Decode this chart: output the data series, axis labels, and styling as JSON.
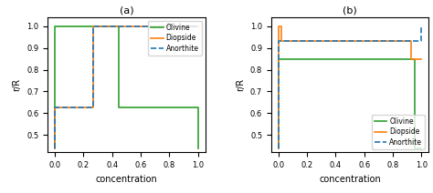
{
  "panel_a": {
    "olivine": {
      "x": [
        0.0,
        0.0,
        0.45,
        0.45,
        1.0,
        1.0
      ],
      "y": [
        0.44,
        1.0,
        1.0,
        0.625,
        0.625,
        0.44
      ]
    },
    "diopside": {
      "x": [
        0.0,
        0.0,
        0.27,
        0.27,
        1.0
      ],
      "y": [
        0.44,
        0.625,
        0.625,
        1.0,
        1.0
      ]
    },
    "anorthite": {
      "x": [
        0.0,
        0.0,
        0.27,
        0.27,
        1.0
      ],
      "y": [
        0.44,
        0.625,
        0.625,
        1.0,
        1.0
      ]
    },
    "xlabel": "concentration",
    "ylabel": "r/R",
    "title": "(a)",
    "xlim": [
      -0.05,
      1.05
    ],
    "ylim": [
      0.42,
      1.04
    ],
    "yticks": [
      0.5,
      0.6,
      0.7,
      0.8,
      0.9,
      1.0
    ],
    "xticks": [
      0.0,
      0.2,
      0.4,
      0.6,
      0.8,
      1.0
    ]
  },
  "panel_b": {
    "olivine": {
      "x": [
        0.0,
        0.0,
        0.05,
        0.05,
        0.95,
        0.95,
        1.0
      ],
      "y": [
        0.44,
        0.85,
        0.85,
        0.85,
        0.85,
        0.44,
        0.44
      ]
    },
    "diopside": {
      "x": [
        0.0,
        0.0,
        0.02,
        0.02,
        0.93,
        0.93,
        1.0
      ],
      "y": [
        0.44,
        1.0,
        1.0,
        0.93,
        0.93,
        0.85,
        0.85
      ]
    },
    "anorthite": {
      "x": [
        0.0,
        0.0,
        0.93,
        0.93,
        1.0,
        1.0
      ],
      "y": [
        0.44,
        0.93,
        0.93,
        0.93,
        0.93,
        1.0
      ]
    },
    "xlabel": "concentration",
    "ylabel": "r/R",
    "title": "(b)",
    "xlim": [
      -0.05,
      1.05
    ],
    "ylim": [
      0.42,
      1.04
    ],
    "yticks": [
      0.5,
      0.6,
      0.7,
      0.8,
      0.9,
      1.0
    ],
    "xticks": [
      0.0,
      0.2,
      0.4,
      0.6,
      0.8,
      1.0
    ]
  },
  "colors": {
    "olivine": "#2ca02c",
    "diopside": "#ff7f0e",
    "anorthite": "#1f77b4"
  }
}
